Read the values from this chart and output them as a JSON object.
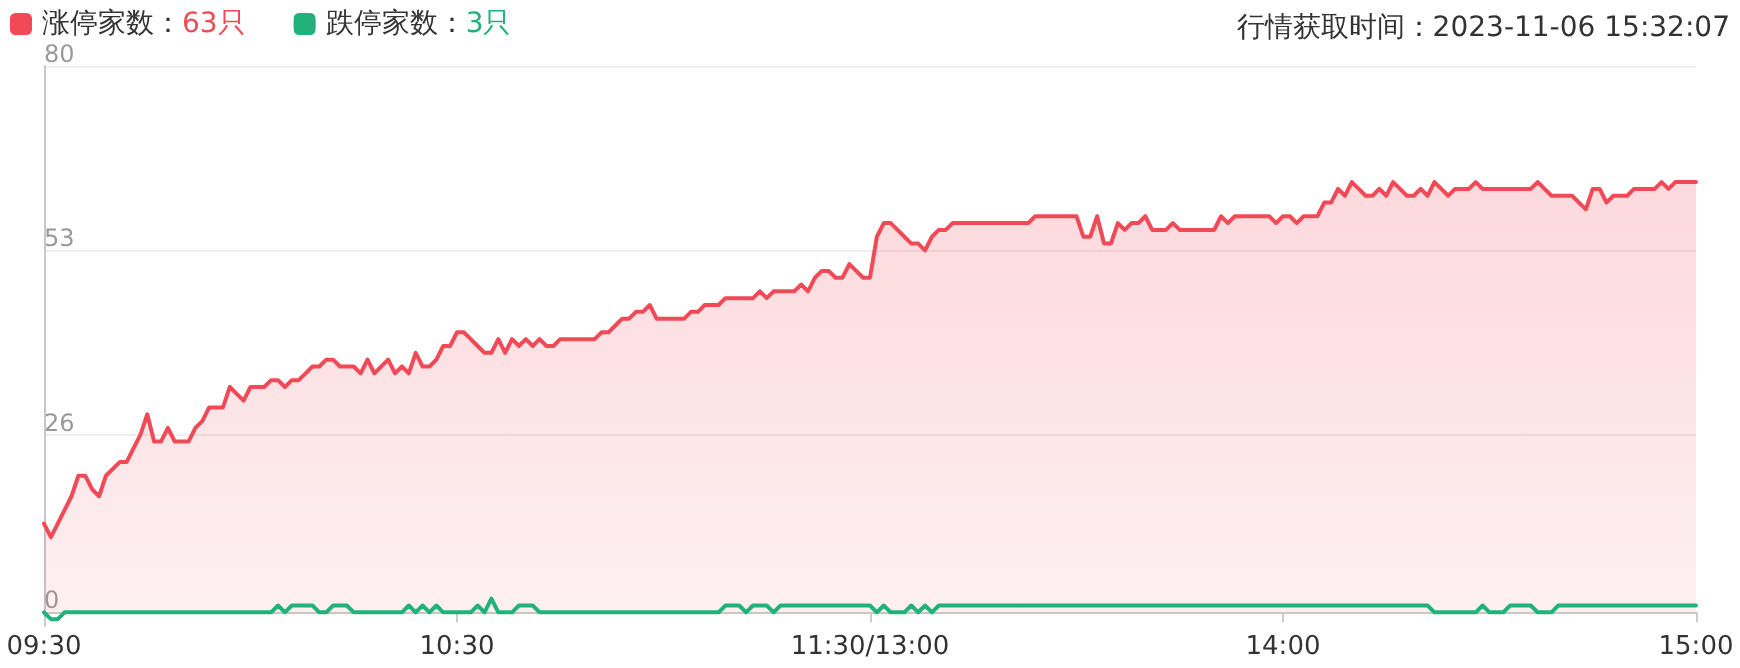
{
  "chart_data": {
    "type": "area",
    "subtitle": "行情获取时间：2023-11-06 15:32:07",
    "categories": [
      "09:30",
      null,
      null,
      null,
      null,
      null,
      null,
      null,
      null,
      null,
      null,
      null,
      null,
      null,
      null,
      null,
      null,
      null,
      null,
      null,
      null,
      null,
      null,
      null,
      null,
      null,
      null,
      null,
      null,
      null,
      null,
      null,
      null,
      null,
      null,
      null,
      null,
      null,
      null,
      null,
      null,
      null,
      null,
      null,
      null,
      null,
      null,
      null,
      null,
      null,
      null,
      null,
      null,
      null,
      null,
      null,
      null,
      null,
      null,
      null,
      "10:30",
      null,
      null,
      null,
      null,
      null,
      null,
      null,
      null,
      null,
      null,
      null,
      null,
      null,
      null,
      null,
      null,
      null,
      null,
      null,
      null,
      null,
      null,
      null,
      null,
      null,
      null,
      null,
      null,
      null,
      null,
      null,
      null,
      null,
      null,
      null,
      null,
      null,
      null,
      null,
      null,
      null,
      null,
      null,
      null,
      null,
      null,
      null,
      null,
      null,
      null,
      null,
      null,
      null,
      null,
      null,
      null,
      null,
      null,
      null,
      "11:30/13:00",
      null,
      null,
      null,
      null,
      null,
      null,
      null,
      null,
      null,
      null,
      null,
      null,
      null,
      null,
      null,
      null,
      null,
      null,
      null,
      null,
      null,
      null,
      null,
      null,
      null,
      null,
      null,
      null,
      null,
      null,
      null,
      null,
      null,
      null,
      null,
      null,
      null,
      null,
      null,
      null,
      null,
      null,
      null,
      null,
      null,
      null,
      null,
      null,
      null,
      null,
      null,
      null,
      null,
      null,
      null,
      null,
      null,
      null,
      null,
      "14:00",
      null,
      null,
      null,
      null,
      null,
      null,
      null,
      null,
      null,
      null,
      null,
      null,
      null,
      null,
      null,
      null,
      null,
      null,
      null,
      null,
      null,
      null,
      null,
      null,
      null,
      null,
      null,
      null,
      null,
      null,
      null,
      null,
      null,
      null,
      null,
      null,
      null,
      null,
      null,
      null,
      null,
      null,
      null,
      null,
      null,
      null,
      null,
      null,
      null,
      null,
      null,
      null,
      null,
      null,
      null,
      null,
      null,
      null,
      null,
      "15:00"
    ],
    "ylim": [
      -2,
      80
    ],
    "yticks": [
      0,
      26,
      53,
      80
    ],
    "grid": "y",
    "legend": "top left",
    "marker": "none",
    "line_style": "solid",
    "series": [
      {
        "name": "涨停家数：63只",
        "color": "#f24957",
        "values": [
          13,
          11,
          13,
          15,
          17,
          20,
          20,
          18,
          17,
          20,
          21,
          22,
          22,
          24,
          26,
          29,
          25,
          25,
          27,
          25,
          25,
          25,
          27,
          28,
          30,
          30,
          30,
          33,
          32,
          31,
          33,
          33,
          33,
          34,
          34,
          33,
          34,
          34,
          35,
          36,
          36,
          37,
          37,
          36,
          36,
          36,
          35,
          37,
          35,
          36,
          37,
          35,
          36,
          35,
          38,
          36,
          36,
          37,
          39,
          39,
          41,
          41,
          40,
          39,
          38,
          38,
          40,
          38,
          40,
          39,
          40,
          39,
          40,
          39,
          39,
          40,
          40,
          40,
          40,
          40,
          40,
          41,
          41,
          42,
          43,
          43,
          44,
          44,
          45,
          43,
          43,
          43,
          43,
          43,
          44,
          44,
          45,
          45,
          45,
          46,
          46,
          46,
          46,
          46,
          47,
          46,
          47,
          47,
          47,
          47,
          48,
          47,
          49,
          50,
          50,
          49,
          49,
          51,
          50,
          49,
          49,
          55,
          57,
          57,
          56,
          55,
          54,
          54,
          53,
          55,
          56,
          56,
          57,
          57,
          57,
          57,
          57,
          57,
          57,
          57,
          57,
          57,
          57,
          57,
          58,
          58,
          58,
          58,
          58,
          58,
          58,
          55,
          55,
          58,
          54,
          54,
          57,
          56,
          57,
          57,
          58,
          56,
          56,
          56,
          57,
          56,
          56,
          56,
          56,
          56,
          56,
          58,
          57,
          58,
          58,
          58,
          58,
          58,
          58,
          57,
          58,
          58,
          57,
          58,
          58,
          58,
          60,
          60,
          62,
          61,
          63,
          62,
          61,
          61,
          62,
          61,
          63,
          62,
          61,
          61,
          62,
          61,
          63,
          62,
          61,
          62,
          62,
          62,
          63,
          62,
          62,
          62,
          62,
          62,
          62,
          62,
          62,
          63,
          62,
          61,
          61,
          61,
          61,
          60,
          59,
          62,
          62,
          60,
          61,
          61,
          61,
          62,
          62,
          62,
          62,
          63,
          62,
          63,
          63,
          63,
          63
        ]
      },
      {
        "name": "跌停家数：3只",
        "type": "line",
        "color": "#20b27a",
        "values": [
          0,
          -1,
          -1,
          0,
          0,
          0,
          0,
          0,
          0,
          0,
          0,
          0,
          0,
          0,
          0,
          0,
          0,
          0,
          0,
          0,
          0,
          0,
          0,
          0,
          0,
          0,
          0,
          0,
          0,
          0,
          0,
          0,
          0,
          0,
          1,
          0,
          1,
          1,
          1,
          1,
          0,
          0,
          1,
          1,
          1,
          0,
          0,
          0,
          0,
          0,
          0,
          0,
          0,
          1,
          0,
          1,
          0,
          1,
          0,
          0,
          0,
          0,
          0,
          1,
          0,
          2,
          0,
          0,
          0,
          1,
          1,
          1,
          0,
          0,
          0,
          0,
          0,
          0,
          0,
          0,
          0,
          0,
          0,
          0,
          0,
          0,
          0,
          0,
          0,
          0,
          0,
          0,
          0,
          0,
          0,
          0,
          0,
          0,
          0,
          1,
          1,
          1,
          0,
          1,
          1,
          1,
          0,
          1,
          1,
          1,
          1,
          1,
          1,
          1,
          1,
          1,
          1,
          1,
          1,
          1,
          1,
          0,
          1,
          0,
          0,
          0,
          1,
          0,
          1,
          0,
          1,
          1,
          1,
          1,
          1,
          1,
          1,
          1,
          1,
          1,
          1,
          1,
          1,
          1,
          1,
          1,
          1,
          1,
          1,
          1,
          1,
          1,
          1,
          1,
          1,
          1,
          1,
          1,
          1,
          1,
          1,
          1,
          1,
          1,
          1,
          1,
          1,
          1,
          1,
          1,
          1,
          1,
          1,
          1,
          1,
          1,
          1,
          1,
          1,
          1,
          1,
          1,
          1,
          1,
          1,
          1,
          1,
          1,
          1,
          1,
          1,
          1,
          1,
          1,
          1,
          1,
          1,
          1,
          1,
          1,
          1,
          1,
          0,
          0,
          0,
          0,
          0,
          0,
          0,
          1,
          0,
          0,
          0,
          1,
          1,
          1,
          1,
          0,
          0,
          0,
          1,
          1,
          1,
          1,
          1,
          1,
          1,
          1,
          1,
          1,
          1,
          1,
          1,
          1,
          1,
          1,
          1,
          1,
          1,
          1,
          1
        ]
      }
    ]
  }
}
